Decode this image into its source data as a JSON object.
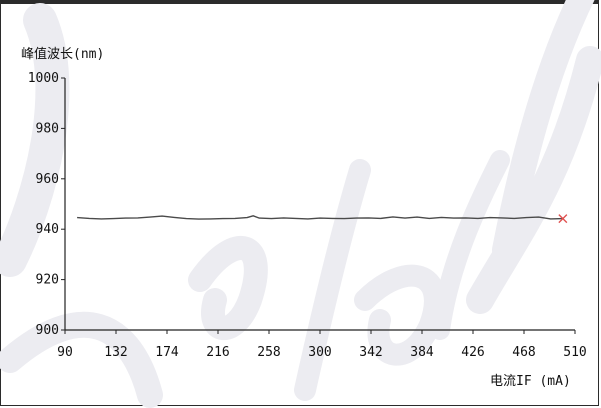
{
  "chart_data": {
    "type": "line",
    "ylabel": "峰值波长(nm)",
    "xlabel": "电流IF (mA)",
    "xlim": [
      90,
      510
    ],
    "ylim": [
      900,
      1000
    ],
    "xticks": [
      90,
      132,
      174,
      216,
      258,
      300,
      342,
      384,
      426,
      468,
      510
    ],
    "yticks": [
      900,
      920,
      940,
      960,
      980,
      1000
    ],
    "grid": false,
    "series": [
      {
        "color": "#4a4a4a",
        "x": [
          100,
          110,
          120,
          130,
          140,
          150,
          160,
          170,
          180,
          190,
          200,
          210,
          220,
          230,
          240,
          245,
          250,
          260,
          270,
          280,
          290,
          300,
          310,
          320,
          330,
          340,
          350,
          360,
          370,
          380,
          390,
          400,
          410,
          420,
          430,
          440,
          450,
          460,
          470,
          480,
          490,
          500
        ],
        "y": [
          944.6,
          944.3,
          944.1,
          944.2,
          944.4,
          944.5,
          944.8,
          945.2,
          944.7,
          944.2,
          944.0,
          944.1,
          944.2,
          944.3,
          944.6,
          945.3,
          944.4,
          944.2,
          944.5,
          944.3,
          944.1,
          944.4,
          944.3,
          944.2,
          944.4,
          944.5,
          944.3,
          944.9,
          944.4,
          944.8,
          944.3,
          944.7,
          944.4,
          944.5,
          944.3,
          944.6,
          944.5,
          944.3,
          944.6,
          944.8,
          944.1,
          944.2
        ]
      }
    ],
    "end_marker": {
      "x": 500,
      "y": 944.2,
      "symbol": "×",
      "color": "#e0504f"
    }
  },
  "colors": {
    "axis": "#222222",
    "watermark": "#ececf1"
  }
}
